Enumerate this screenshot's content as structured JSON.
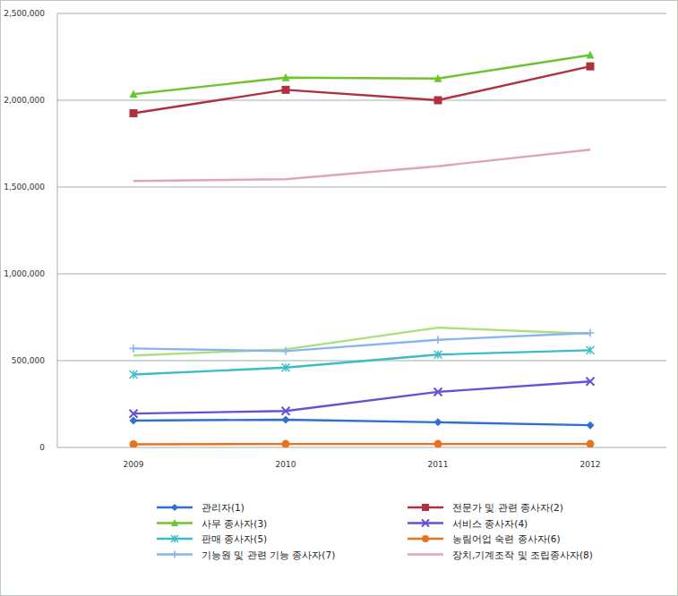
{
  "chart_data": {
    "type": "line",
    "categories": [
      "2009",
      "2010",
      "2011",
      "2012"
    ],
    "ylim": [
      0,
      2500000
    ],
    "yticks": [
      0,
      {
        "value": 500000,
        "label": "500,000"
      },
      {
        "value": 1000000,
        "label": "1,000,000"
      },
      {
        "value": 1500000,
        "label": "1,500,000"
      },
      {
        "value": 2000000,
        "label": "2,000,000"
      },
      {
        "value": 2500000,
        "label": "2,500,000"
      }
    ],
    "grid": true,
    "legend": "bottom",
    "series": [
      {
        "name": "관리자(1)",
        "color": "#2e6fd1",
        "marker": "diamond",
        "line_style": "solid",
        "values": [
          155000,
          160000,
          145000,
          128000
        ]
      },
      {
        "name": "전문가 및 관련 종사자(2)",
        "color": "#b0303f",
        "marker": "square",
        "line_style": "solid",
        "values": [
          1925000,
          2060000,
          2000000,
          2195000
        ]
      },
      {
        "name": "사무 종사자(3)",
        "color": "#6cc52e",
        "marker": "triangle",
        "line_style": "solid",
        "values": [
          2035000,
          2130000,
          2125000,
          2260000
        ]
      },
      {
        "name": "서비스 종사자(4)",
        "color": "#6a4fd6",
        "marker": "x",
        "line_style": "solid",
        "values": [
          195000,
          210000,
          320000,
          380000
        ]
      },
      {
        "name": "판매 종사자(5)",
        "color": "#3cbcc6",
        "marker": "asterisk",
        "line_style": "solid",
        "values": [
          420000,
          460000,
          535000,
          560000
        ]
      },
      {
        "name": "농림어업 숙련 종사자(6)",
        "color": "#e8731e",
        "marker": "circle",
        "line_style": "solid",
        "values": [
          18000,
          20000,
          20000,
          20000
        ]
      },
      {
        "name": "기능원 및 관련 기능 종사자(7)",
        "color": "#8ab4f0",
        "marker": "plus",
        "line_style": "solid",
        "values": [
          570000,
          555000,
          620000,
          660000
        ]
      },
      {
        "name": "장치,기계조작 및 조립종사자(8)",
        "color": "#e2a2c2",
        "marker": "none",
        "line_style": "solid",
        "values": [
          1535000,
          1545000,
          1620000,
          1715000
        ]
      },
      {
        "color": "#a8e07a",
        "marker": "none",
        "line_style": "solid",
        "values": [
          530000,
          565000,
          690000,
          655000
        ]
      }
    ]
  }
}
